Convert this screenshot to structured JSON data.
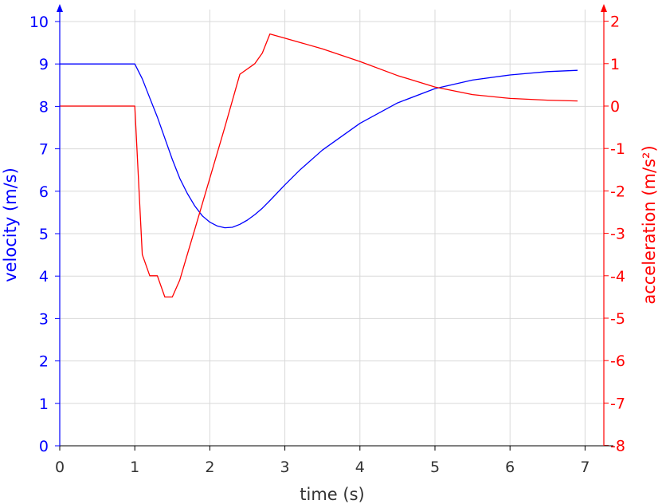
{
  "chart_data": {
    "type": "line",
    "xlabel": "time (s)",
    "ylabel_left": "velocity (m/s)",
    "ylabel_right": "acceleration (m/s²)",
    "x_range": [
      0,
      7.3
    ],
    "y_left_range": [
      0,
      10.5
    ],
    "y_right_range": [
      -8,
      2.5
    ],
    "x_ticks": [
      "0",
      "1",
      "2",
      "3",
      "4",
      "5",
      "6",
      "7"
    ],
    "y_left_ticks": [
      "0",
      "1",
      "2",
      "3",
      "4",
      "5",
      "6",
      "7",
      "8",
      "9",
      "10"
    ],
    "y_right_ticks": [
      "-8",
      "-7",
      "-6",
      "-5",
      "-4",
      "-3",
      "-2",
      "-1",
      "0",
      "1",
      "2"
    ],
    "grid": true,
    "colors": {
      "velocity": "#0000ff",
      "acceleration": "#ff0000",
      "grid": "#d9d9d9",
      "x_axis": "#000000"
    },
    "series": [
      {
        "axis": "left",
        "color": "#0000ff",
        "x": [
          0,
          1.0,
          1.1,
          1.2,
          1.3,
          1.4,
          1.5,
          1.6,
          1.7,
          1.8,
          1.9,
          2.0,
          2.1,
          2.2,
          2.3,
          2.4,
          2.5,
          2.6,
          2.7,
          2.8,
          3.0,
          3.2,
          3.5,
          4.0,
          4.5,
          5.0,
          5.5,
          6.0,
          6.5,
          6.9
        ],
        "y": [
          9,
          9,
          8.65,
          8.2,
          7.75,
          7.25,
          6.75,
          6.3,
          5.95,
          5.65,
          5.42,
          5.27,
          5.18,
          5.14,
          5.15,
          5.22,
          5.32,
          5.45,
          5.6,
          5.78,
          6.15,
          6.5,
          6.97,
          7.6,
          8.08,
          8.42,
          8.62,
          8.74,
          8.82,
          8.85
        ]
      },
      {
        "axis": "right",
        "color": "#ff0000",
        "x": [
          0,
          1.0,
          1.1,
          1.2,
          1.3,
          1.4,
          1.5,
          1.6,
          1.7,
          1.8,
          1.9,
          2.0,
          2.2,
          2.4,
          2.6,
          2.7,
          2.8,
          3.0,
          3.5,
          4.0,
          4.5,
          5.0,
          5.5,
          6.0,
          6.5,
          6.9
        ],
        "y": [
          0,
          0,
          -3.5,
          -4,
          -4,
          -4.5,
          -4.5,
          -4.1,
          -3.5,
          -2.9,
          -2.3,
          -1.7,
          -0.5,
          0.75,
          1.0,
          1.25,
          1.7,
          1.6,
          1.35,
          1.05,
          0.72,
          0.45,
          0.27,
          0.18,
          0.14,
          0.12
        ]
      }
    ]
  }
}
